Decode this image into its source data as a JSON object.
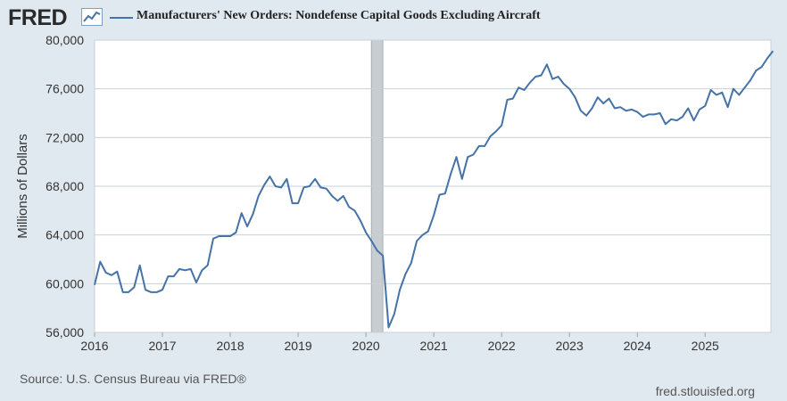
{
  "header": {
    "logo_text": "FRED",
    "logo_icon": "line-graph-icon",
    "title": "Manufacturers' New Orders: Nondefense Capital Goods Excluding Aircraft"
  },
  "colors": {
    "series_line": "#4572a7",
    "background": "#e1e9f0",
    "plot_background": "#ffffff",
    "gridline": "#c8d0d8",
    "recession": "#c8cdd2"
  },
  "chart_data": {
    "type": "line",
    "title": "Manufacturers' New Orders: Nondefense Capital Goods Excluding Aircraft",
    "xlabel": "",
    "ylabel": "Millions of Dollars",
    "ylim": [
      56000,
      80000
    ],
    "yticks": [
      56000,
      60000,
      64000,
      68000,
      72000,
      76000,
      80000
    ],
    "ytick_labels": [
      "56,000",
      "60,000",
      "64,000",
      "68,000",
      "72,000",
      "76,000",
      "80,000"
    ],
    "xlim": [
      2016.0,
      2025.97
    ],
    "xticks": [
      2016,
      2017,
      2018,
      2019,
      2020,
      2021,
      2022,
      2023,
      2024,
      2025
    ],
    "xtick_labels": [
      "2016",
      "2017",
      "2018",
      "2019",
      "2020",
      "2021",
      "2022",
      "2023",
      "2024",
      "2025"
    ],
    "grid": true,
    "legend": "top-left",
    "recession": [
      2020.08,
      2020.25
    ],
    "series": [
      {
        "name": "Manufacturers' New Orders: Nondefense Capital Goods Excluding Aircraft",
        "start": 2016.0,
        "step_months": 1,
        "values": [
          59900,
          61800,
          60900,
          60700,
          61000,
          59300,
          59300,
          59700,
          61500,
          59500,
          59300,
          59300,
          59500,
          60600,
          60600,
          61200,
          61100,
          61200,
          60100,
          61100,
          61500,
          63700,
          63900,
          63900,
          63900,
          64200,
          65800,
          64700,
          65700,
          67200,
          68100,
          68800,
          68000,
          67900,
          68600,
          66600,
          66600,
          67900,
          68000,
          68600,
          67900,
          67800,
          67200,
          66800,
          67200,
          66300,
          66000,
          65200,
          64200,
          63500,
          62700,
          62300,
          56400,
          57500,
          59500,
          60800,
          61700,
          63500,
          64000,
          64300,
          65600,
          67300,
          67400,
          69000,
          70400,
          68600,
          70400,
          70600,
          71300,
          71300,
          72100,
          72500,
          73000,
          75100,
          75200,
          76100,
          75900,
          76500,
          77000,
          77100,
          78000,
          76800,
          77000,
          76400,
          76000,
          75300,
          74200,
          73800,
          74400,
          75300,
          74800,
          75200,
          74400,
          74500,
          74200,
          74300,
          74100,
          73700,
          73900,
          73900,
          74000,
          73100,
          73500,
          73400,
          73700,
          74400,
          73400,
          74300,
          74600,
          75900,
          75500,
          75700,
          74500,
          76000,
          75500,
          76100,
          76700,
          77500,
          77800,
          78500,
          79100
        ]
      }
    ]
  },
  "footer": {
    "source": "Source: U.S. Census Bureau via FRED®",
    "site": "fred.stlouisfed.org"
  }
}
